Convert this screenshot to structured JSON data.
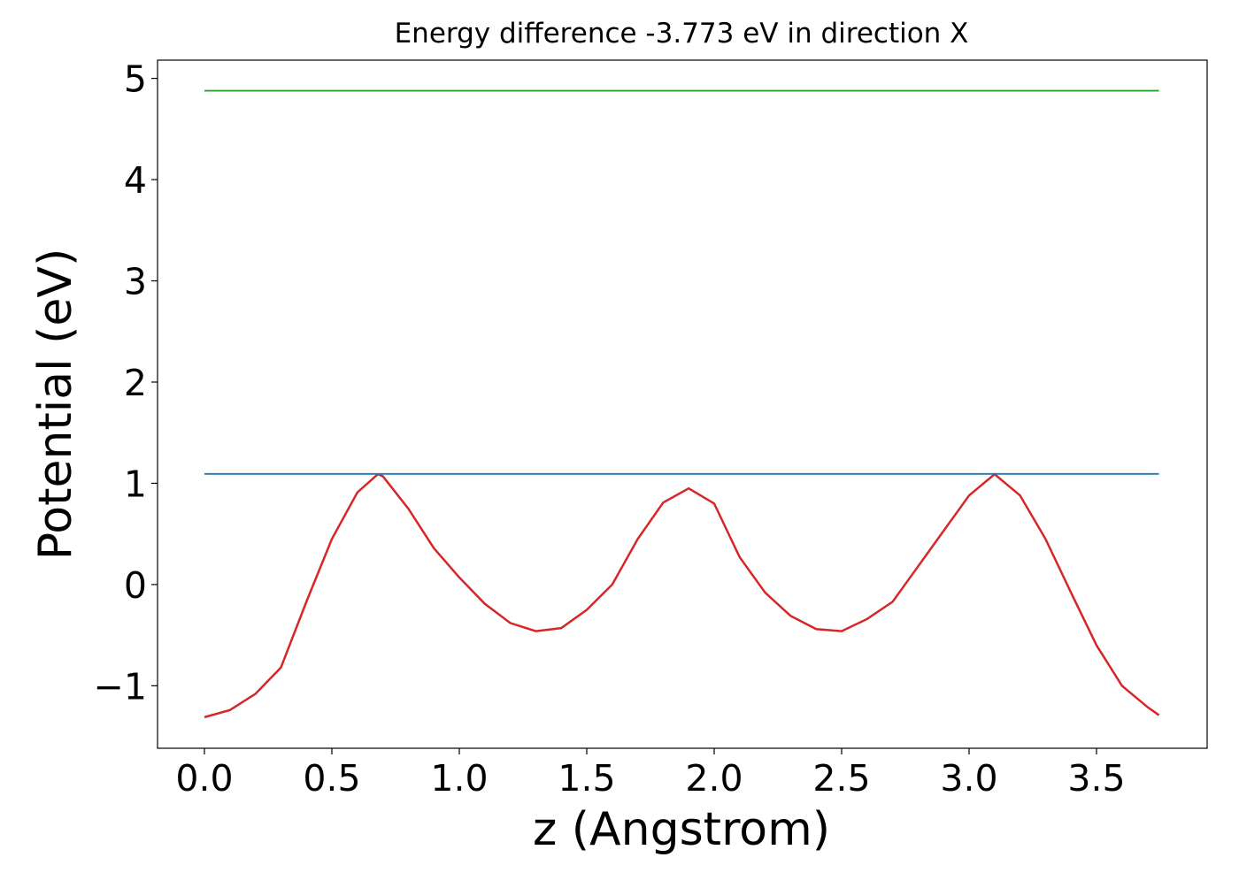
{
  "chart_data": {
    "type": "line",
    "title": "Energy difference -3.773 eV in direction X",
    "x_label": "z (Angstrom)",
    "y_label": "Potential (eV)",
    "xlim": [
      -0.184,
      3.934
    ],
    "ylim": [
      -1.617,
      5.18
    ],
    "xticks": [
      {
        "value": 0,
        "label": "0.0"
      },
      0.5,
      {
        "value": 1,
        "label": "1.0"
      },
      1.5,
      {
        "value": 2,
        "label": "2.0"
      },
      2.5,
      {
        "value": 3,
        "label": "3.0"
      },
      3.5
    ],
    "yticks": [
      {
        "value": -1,
        "label": "−1"
      },
      0,
      1,
      2,
      3,
      4,
      5
    ],
    "series": [
      {
        "color": "#d62728",
        "x": [
          0,
          0.1,
          0.2,
          0.3,
          0.4,
          0.5,
          0.6,
          0.68,
          0.7,
          0.8,
          0.9,
          1.0,
          1.1,
          1.2,
          1.3,
          1.4,
          1.5,
          1.6,
          1.7,
          1.8,
          1.9,
          2.0,
          2.1,
          2.2,
          2.3,
          2.4,
          2.5,
          2.6,
          2.7,
          2.8,
          2.9,
          3.0,
          3.1,
          3.2,
          3.3,
          3.4,
          3.5,
          3.6,
          3.7,
          3.745
        ],
        "values": [
          -1.31,
          -1.24,
          -1.08,
          -0.82,
          -0.17,
          0.45,
          0.91,
          1.09,
          1.07,
          0.75,
          0.36,
          0.07,
          -0.19,
          -0.38,
          -0.46,
          -0.43,
          -0.25,
          0,
          0.45,
          0.81,
          0.95,
          0.8,
          0.27,
          -0.08,
          -0.31,
          -0.44,
          -0.46,
          -0.34,
          -0.17,
          0.18,
          0.53,
          0.88,
          1.09,
          0.88,
          0.45,
          -0.08,
          -0.6,
          -1.0,
          -1.21,
          -1.29
        ]
      },
      {
        "color": "#1f77b4",
        "x": [
          0,
          3.745
        ],
        "values": [
          1.093,
          1.093
        ]
      },
      {
        "color": "#2ca02c",
        "x": [
          0,
          3.745
        ],
        "values": [
          4.878,
          4.878
        ]
      }
    ]
  }
}
